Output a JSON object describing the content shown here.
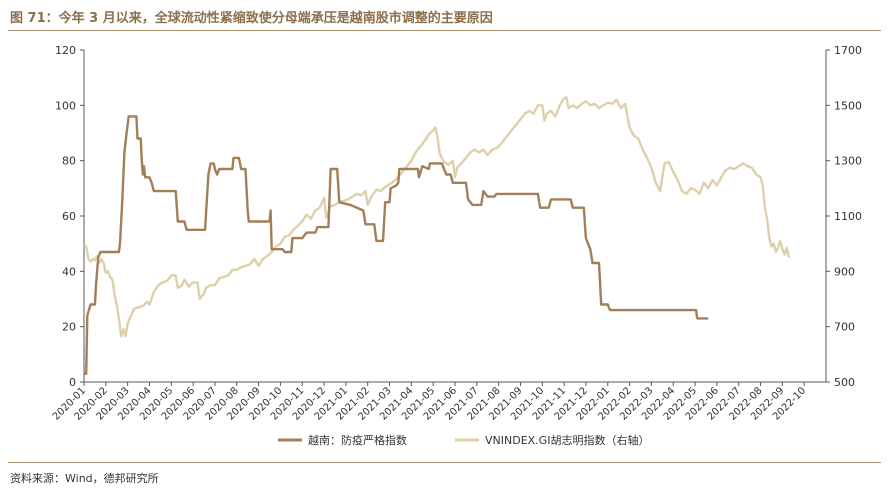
{
  "title": "图 71：今年 3 月以来，全球流动性紧缩致使分母端承压是越南股市调整的主要原因",
  "source": "资料来源：Wind，德邦研究所",
  "colors": {
    "series1": "#a27f58",
    "series2": "#ddd0aa",
    "title": "#8b6f4e"
  },
  "chart_data": {
    "type": "line",
    "x": [
      "2020-01",
      "2020-02",
      "2020-03",
      "2020-04",
      "2020-05",
      "2020-06",
      "2020-07",
      "2020-08",
      "2020-09",
      "2020-10",
      "2020-11",
      "2020-12",
      "2021-01",
      "2021-02",
      "2021-03",
      "2021-04",
      "2021-05",
      "2021-06",
      "2021-07",
      "2021-08",
      "2021-09",
      "2021-10",
      "2021-11",
      "2021-12",
      "2022-01",
      "2022-02",
      "2022-03",
      "2022-04",
      "2022-05",
      "2022-06",
      "2022-07",
      "2022-08",
      "2022-09",
      "2022-10"
    ],
    "y_left_ticks": [
      0,
      20,
      40,
      60,
      80,
      100,
      120
    ],
    "y_right_ticks": [
      500,
      700,
      900,
      1100,
      1300,
      1500,
      1700
    ],
    "ylim_left": [
      0,
      120
    ],
    "ylim_right": [
      500,
      1700
    ],
    "series": [
      {
        "name": "越南：防疫严格指数",
        "axis": "left",
        "points": [
          [
            0.0,
            3
          ],
          [
            0.1,
            3
          ],
          [
            0.15,
            24
          ],
          [
            0.3,
            28
          ],
          [
            0.5,
            28
          ],
          [
            0.55,
            35
          ],
          [
            0.65,
            45
          ],
          [
            0.75,
            47
          ],
          [
            1.6,
            47
          ],
          [
            1.65,
            50
          ],
          [
            1.75,
            65
          ],
          [
            1.85,
            83
          ],
          [
            1.95,
            90
          ],
          [
            2.05,
            96
          ],
          [
            2.4,
            96
          ],
          [
            2.45,
            88
          ],
          [
            2.6,
            88
          ],
          [
            2.65,
            80
          ],
          [
            2.7,
            75
          ],
          [
            2.75,
            78
          ],
          [
            2.8,
            74
          ],
          [
            3.0,
            74
          ],
          [
            3.1,
            72
          ],
          [
            3.2,
            69
          ],
          [
            4.2,
            69
          ],
          [
            4.3,
            58
          ],
          [
            4.6,
            58
          ],
          [
            4.7,
            55
          ],
          [
            5.55,
            55
          ],
          [
            5.6,
            62
          ],
          [
            5.7,
            75
          ],
          [
            5.8,
            79
          ],
          [
            5.95,
            79
          ],
          [
            6.0,
            77
          ],
          [
            6.1,
            75
          ],
          [
            6.2,
            77
          ],
          [
            6.8,
            77
          ],
          [
            6.85,
            81
          ],
          [
            7.1,
            81
          ],
          [
            7.2,
            77
          ],
          [
            7.4,
            77
          ],
          [
            7.5,
            62
          ],
          [
            7.55,
            58
          ],
          [
            8.5,
            58
          ],
          [
            8.55,
            62
          ],
          [
            8.6,
            48
          ],
          [
            9.1,
            48
          ],
          [
            9.2,
            47
          ],
          [
            9.4,
            47
          ],
          [
            9.5,
            47
          ],
          [
            9.55,
            52
          ],
          [
            10.0,
            52
          ],
          [
            10.2,
            54
          ],
          [
            10.6,
            54
          ],
          [
            10.7,
            56
          ],
          [
            11.2,
            56
          ],
          [
            11.25,
            66
          ],
          [
            11.3,
            77
          ],
          [
            11.6,
            77
          ],
          [
            11.7,
            65
          ],
          [
            12.2,
            64
          ],
          [
            12.8,
            62
          ],
          [
            12.9,
            57
          ],
          [
            13.3,
            57
          ],
          [
            13.4,
            51
          ],
          [
            13.7,
            51
          ],
          [
            13.8,
            65
          ],
          [
            14.0,
            65
          ],
          [
            14.05,
            70
          ],
          [
            14.3,
            71
          ],
          [
            14.4,
            72
          ],
          [
            14.45,
            77
          ],
          [
            15.2,
            77
          ],
          [
            15.3,
            77
          ],
          [
            15.35,
            74
          ],
          [
            15.5,
            78
          ],
          [
            15.8,
            77
          ],
          [
            15.85,
            79
          ],
          [
            16.4,
            79
          ],
          [
            16.6,
            75
          ],
          [
            16.8,
            75
          ],
          [
            16.9,
            72
          ],
          [
            17.5,
            72
          ],
          [
            17.6,
            66
          ],
          [
            17.8,
            64
          ],
          [
            18.2,
            64
          ],
          [
            18.3,
            69
          ],
          [
            18.5,
            67
          ],
          [
            18.8,
            67
          ],
          [
            18.9,
            68
          ],
          [
            20.8,
            68
          ],
          [
            20.9,
            63
          ],
          [
            21.3,
            63
          ],
          [
            21.4,
            66
          ],
          [
            22.3,
            66
          ],
          [
            22.4,
            63
          ],
          [
            22.9,
            63
          ],
          [
            23.0,
            52
          ],
          [
            23.2,
            48
          ],
          [
            23.3,
            43
          ],
          [
            23.6,
            43
          ],
          [
            23.7,
            28
          ],
          [
            24.0,
            28
          ],
          [
            24.1,
            26
          ],
          [
            28.0,
            26
          ],
          [
            28.05,
            26
          ],
          [
            28.1,
            23
          ],
          [
            28.6,
            23
          ]
        ]
      },
      {
        "name": "VNINDEX.GI胡志明指数（右轴）",
        "axis": "right",
        "points": [
          [
            0.0,
            995
          ],
          [
            0.1,
            990
          ],
          [
            0.2,
            945
          ],
          [
            0.3,
            935
          ],
          [
            0.4,
            945
          ],
          [
            0.5,
            940
          ],
          [
            0.6,
            955
          ],
          [
            0.7,
            930
          ],
          [
            0.8,
            945
          ],
          [
            0.9,
            930
          ],
          [
            1.0,
            895
          ],
          [
            1.1,
            900
          ],
          [
            1.2,
            880
          ],
          [
            1.3,
            870
          ],
          [
            1.4,
            815
          ],
          [
            1.5,
            780
          ],
          [
            1.6,
            730
          ],
          [
            1.7,
            665
          ],
          [
            1.8,
            690
          ],
          [
            1.9,
            665
          ],
          [
            2.0,
            710
          ],
          [
            2.1,
            730
          ],
          [
            2.3,
            765
          ],
          [
            2.5,
            770
          ],
          [
            2.7,
            775
          ],
          [
            2.9,
            790
          ],
          [
            3.0,
            780
          ],
          [
            3.2,
            825
          ],
          [
            3.4,
            850
          ],
          [
            3.6,
            860
          ],
          [
            3.8,
            865
          ],
          [
            4.0,
            885
          ],
          [
            4.2,
            885
          ],
          [
            4.3,
            840
          ],
          [
            4.5,
            850
          ],
          [
            4.6,
            870
          ],
          [
            4.8,
            845
          ],
          [
            5.0,
            860
          ],
          [
            5.2,
            860
          ],
          [
            5.3,
            800
          ],
          [
            5.5,
            820
          ],
          [
            5.6,
            840
          ],
          [
            5.8,
            850
          ],
          [
            6.0,
            850
          ],
          [
            6.2,
            875
          ],
          [
            6.4,
            880
          ],
          [
            6.6,
            885
          ],
          [
            6.8,
            905
          ],
          [
            7.0,
            905
          ],
          [
            7.2,
            915
          ],
          [
            7.4,
            920
          ],
          [
            7.6,
            925
          ],
          [
            7.8,
            945
          ],
          [
            8.0,
            920
          ],
          [
            8.2,
            945
          ],
          [
            8.4,
            955
          ],
          [
            8.6,
            970
          ],
          [
            8.8,
            990
          ],
          [
            9.0,
            1000
          ],
          [
            9.2,
            1025
          ],
          [
            9.4,
            1030
          ],
          [
            9.6,
            1050
          ],
          [
            9.8,
            1065
          ],
          [
            10.0,
            1080
          ],
          [
            10.2,
            1105
          ],
          [
            10.4,
            1090
          ],
          [
            10.6,
            1120
          ],
          [
            10.8,
            1130
          ],
          [
            11.0,
            1165
          ],
          [
            11.1,
            1095
          ],
          [
            11.3,
            1135
          ],
          [
            11.5,
            1140
          ],
          [
            11.7,
            1150
          ],
          [
            11.9,
            1155
          ],
          [
            12.1,
            1160
          ],
          [
            12.3,
            1170
          ],
          [
            12.5,
            1180
          ],
          [
            12.7,
            1175
          ],
          [
            12.9,
            1190
          ],
          [
            13.0,
            1140
          ],
          [
            13.2,
            1175
          ],
          [
            13.4,
            1195
          ],
          [
            13.6,
            1190
          ],
          [
            13.8,
            1205
          ],
          [
            14.0,
            1215
          ],
          [
            14.2,
            1225
          ],
          [
            14.4,
            1240
          ],
          [
            14.6,
            1260
          ],
          [
            14.8,
            1280
          ],
          [
            15.0,
            1300
          ],
          [
            15.2,
            1330
          ],
          [
            15.4,
            1350
          ],
          [
            15.6,
            1370
          ],
          [
            15.8,
            1395
          ],
          [
            16.0,
            1410
          ],
          [
            16.1,
            1420
          ],
          [
            16.2,
            1385
          ],
          [
            16.3,
            1325
          ],
          [
            16.5,
            1295
          ],
          [
            16.7,
            1285
          ],
          [
            16.9,
            1300
          ],
          [
            17.0,
            1240
          ],
          [
            17.1,
            1275
          ],
          [
            17.3,
            1290
          ],
          [
            17.5,
            1310
          ],
          [
            17.7,
            1330
          ],
          [
            17.9,
            1340
          ],
          [
            18.1,
            1330
          ],
          [
            18.3,
            1340
          ],
          [
            18.5,
            1320
          ],
          [
            18.7,
            1340
          ],
          [
            18.9,
            1345
          ],
          [
            19.0,
            1350
          ],
          [
            19.2,
            1370
          ],
          [
            19.4,
            1390
          ],
          [
            19.6,
            1410
          ],
          [
            19.8,
            1430
          ],
          [
            20.0,
            1450
          ],
          [
            20.2,
            1470
          ],
          [
            20.4,
            1480
          ],
          [
            20.6,
            1470
          ],
          [
            20.8,
            1500
          ],
          [
            21.0,
            1500
          ],
          [
            21.1,
            1445
          ],
          [
            21.2,
            1470
          ],
          [
            21.4,
            1480
          ],
          [
            21.6,
            1460
          ],
          [
            21.8,
            1500
          ],
          [
            22.0,
            1525
          ],
          [
            22.1,
            1530
          ],
          [
            22.2,
            1490
          ],
          [
            22.4,
            1500
          ],
          [
            22.6,
            1490
          ],
          [
            22.8,
            1505
          ],
          [
            23.0,
            1515
          ],
          [
            23.2,
            1500
          ],
          [
            23.4,
            1505
          ],
          [
            23.6,
            1490
          ],
          [
            23.8,
            1500
          ],
          [
            24.0,
            1510
          ],
          [
            24.2,
            1505
          ],
          [
            24.4,
            1520
          ],
          [
            24.6,
            1490
          ],
          [
            24.8,
            1505
          ],
          [
            24.9,
            1460
          ],
          [
            25.0,
            1420
          ],
          [
            25.2,
            1390
          ],
          [
            25.4,
            1380
          ],
          [
            25.6,
            1340
          ],
          [
            25.8,
            1310
          ],
          [
            26.0,
            1275
          ],
          [
            26.2,
            1220
          ],
          [
            26.4,
            1190
          ],
          [
            26.6,
            1290
          ],
          [
            26.8,
            1295
          ],
          [
            27.0,
            1260
          ],
          [
            27.2,
            1230
          ],
          [
            27.4,
            1190
          ],
          [
            27.6,
            1180
          ],
          [
            27.8,
            1200
          ],
          [
            28.0,
            1195
          ],
          [
            28.2,
            1180
          ],
          [
            28.4,
            1220
          ],
          [
            28.6,
            1200
          ],
          [
            28.8,
            1230
          ],
          [
            29.0,
            1210
          ],
          [
            29.2,
            1240
          ],
          [
            29.4,
            1265
          ],
          [
            29.6,
            1275
          ],
          [
            29.8,
            1270
          ],
          [
            30.0,
            1280
          ],
          [
            30.2,
            1290
          ],
          [
            30.4,
            1280
          ],
          [
            30.6,
            1275
          ],
          [
            30.8,
            1250
          ],
          [
            31.0,
            1240
          ],
          [
            31.1,
            1210
          ],
          [
            31.2,
            1130
          ],
          [
            31.3,
            1090
          ],
          [
            31.4,
            1020
          ],
          [
            31.5,
            990
          ],
          [
            31.6,
            1000
          ],
          [
            31.7,
            970
          ],
          [
            31.8,
            985
          ],
          [
            31.9,
            1010
          ],
          [
            32.0,
            980
          ],
          [
            32.1,
            960
          ],
          [
            32.2,
            985
          ],
          [
            32.3,
            950
          ]
        ]
      }
    ]
  }
}
